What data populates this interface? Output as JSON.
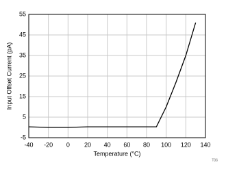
{
  "chart_data": {
    "type": "line",
    "x_label": "Temperature (°C)",
    "y_label": "Input Offset Current  (pA)",
    "note": "T06",
    "x": [
      -40,
      -20,
      0,
      20,
      40,
      60,
      80,
      90,
      100,
      110,
      120,
      130
    ],
    "series": [
      {
        "color": "#000000",
        "values": [
          0.3,
          0,
          0,
          0.3,
          0.3,
          0.3,
          0.3,
          0.3,
          10,
          22,
          35,
          51
        ]
      }
    ],
    "xlim": [
      -40,
      140
    ],
    "xticks": [
      -40,
      -20,
      0,
      20,
      40,
      60,
      80,
      100,
      120,
      140
    ],
    "ylim": [
      -5,
      55
    ],
    "yticks": [
      -5,
      5,
      15,
      25,
      35,
      45,
      55
    ],
    "grid": true
  }
}
